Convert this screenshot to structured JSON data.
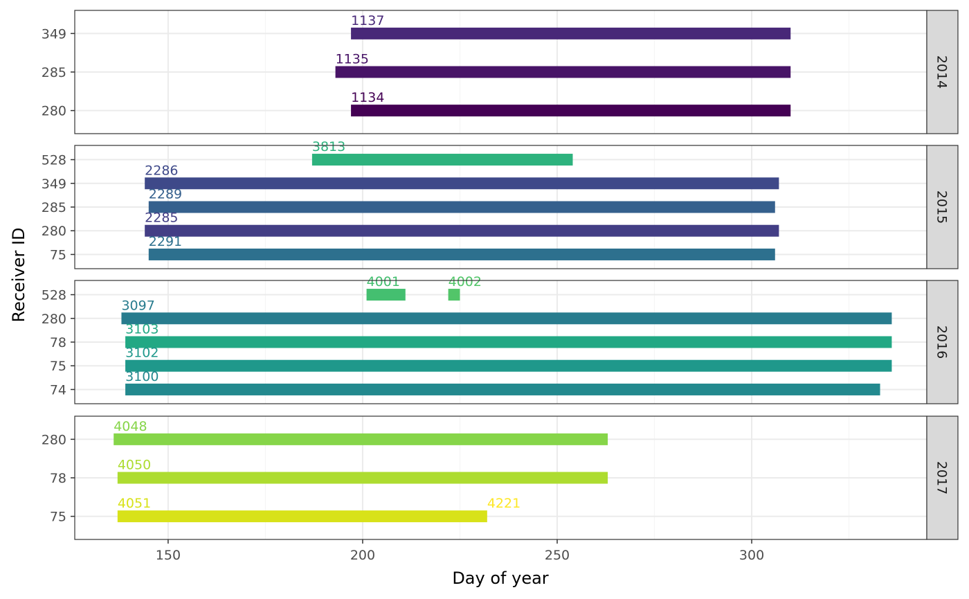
{
  "chart_data": {
    "type": "bar",
    "orientation": "horizontal-range",
    "xlabel": "Day of year",
    "ylabel": "Receiver ID",
    "xlim": [
      126,
      345
    ],
    "x_ticks": [
      150,
      200,
      250,
      300
    ],
    "grid": true,
    "facets": [
      {
        "label": "2014",
        "receivers": [
          "280",
          "285",
          "349"
        ],
        "bars": [
          {
            "receiver": "349",
            "tag": "1137",
            "start": 197,
            "end": 310,
            "color": "#482878"
          },
          {
            "receiver": "285",
            "tag": "1135",
            "start": 193,
            "end": 310,
            "color": "#481467"
          },
          {
            "receiver": "280",
            "tag": "1134",
            "start": 197,
            "end": 310,
            "color": "#440154"
          }
        ]
      },
      {
        "label": "2015",
        "receivers": [
          "75",
          "280",
          "285",
          "349",
          "528"
        ],
        "bars": [
          {
            "receiver": "528",
            "tag": "3813",
            "start": 187,
            "end": 254,
            "color": "#2db27d"
          },
          {
            "receiver": "349",
            "tag": "2286",
            "start": 144,
            "end": 307,
            "color": "#3e4989"
          },
          {
            "receiver": "285",
            "tag": "2289",
            "start": 145,
            "end": 306,
            "color": "#35608d"
          },
          {
            "receiver": "280",
            "tag": "2285",
            "start": 144,
            "end": 307,
            "color": "#433e85"
          },
          {
            "receiver": "75",
            "tag": "2291",
            "start": 145,
            "end": 306,
            "color": "#2d708e"
          }
        ]
      },
      {
        "label": "2016",
        "receivers": [
          "74",
          "75",
          "78",
          "280",
          "528"
        ],
        "bars": [
          {
            "receiver": "528",
            "tag": "4001",
            "start": 201,
            "end": 211,
            "color": "#44bf70"
          },
          {
            "receiver": "528",
            "tag": "4002",
            "start": 222,
            "end": 225,
            "color": "#52c569"
          },
          {
            "receiver": "280",
            "tag": "3097",
            "start": 138,
            "end": 336,
            "color": "#287c8e"
          },
          {
            "receiver": "78",
            "tag": "3103",
            "start": 139,
            "end": 336,
            "color": "#22a884"
          },
          {
            "receiver": "75",
            "tag": "3102",
            "start": 139,
            "end": 336,
            "color": "#1f988b"
          },
          {
            "receiver": "74",
            "tag": "3100",
            "start": 139,
            "end": 333,
            "color": "#23898e"
          }
        ]
      },
      {
        "label": "2017",
        "receivers": [
          "75",
          "78",
          "280"
        ],
        "bars": [
          {
            "receiver": "280",
            "tag": "4048",
            "start": 136,
            "end": 263,
            "color": "#86d549"
          },
          {
            "receiver": "78",
            "tag": "4050",
            "start": 137,
            "end": 263,
            "color": "#addc30"
          },
          {
            "receiver": "75",
            "tag": "4051",
            "start": 137,
            "end": 232,
            "color": "#d8e219"
          },
          {
            "receiver": "75",
            "tag": "4221",
            "start": 232,
            "end": 232,
            "color": "#fde725"
          }
        ]
      }
    ]
  },
  "colors": {
    "panel_border": "#333333",
    "strip_fill": "#d9d9d9",
    "grid_major": "#ebebeb",
    "grid_minor": "#f5f5f5"
  }
}
